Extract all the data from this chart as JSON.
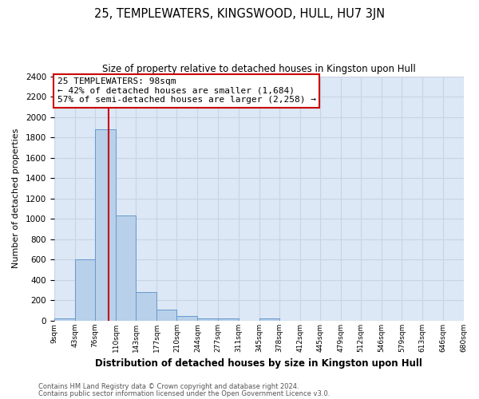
{
  "title": "25, TEMPLEWATERS, KINGSWOOD, HULL, HU7 3JN",
  "subtitle": "Size of property relative to detached houses in Kingston upon Hull",
  "xlabel": "Distribution of detached houses by size in Kingston upon Hull",
  "ylabel": "Number of detached properties",
  "bin_edges": [
    9,
    43,
    76,
    110,
    143,
    177,
    210,
    244,
    277,
    311,
    345,
    378,
    412,
    445,
    479,
    512,
    546,
    579,
    613,
    646,
    680
  ],
  "bar_heights": [
    20,
    600,
    1880,
    1030,
    285,
    110,
    45,
    22,
    20,
    0,
    20,
    0,
    0,
    0,
    0,
    0,
    0,
    0,
    0,
    0
  ],
  "bar_color": "#b8d0ea",
  "bar_edge_color": "#6699cc",
  "grid_color": "#c8d4e4",
  "background_color": "#dce8f5",
  "plot_bg_color": "#dce8f5",
  "property_line_x": 98,
  "property_line_color": "#cc0000",
  "annotation_title": "25 TEMPLEWATERS: 98sqm",
  "annotation_line1": "← 42% of detached houses are smaller (1,684)",
  "annotation_line2": "57% of semi-detached houses are larger (2,258) →",
  "annotation_box_color": "#ffffff",
  "annotation_box_edge": "#cc0000",
  "ylim": [
    0,
    2400
  ],
  "yticks": [
    0,
    200,
    400,
    600,
    800,
    1000,
    1200,
    1400,
    1600,
    1800,
    2000,
    2200,
    2400
  ],
  "footer1": "Contains HM Land Registry data © Crown copyright and database right 2024.",
  "footer2": "Contains public sector information licensed under the Open Government Licence v3.0."
}
